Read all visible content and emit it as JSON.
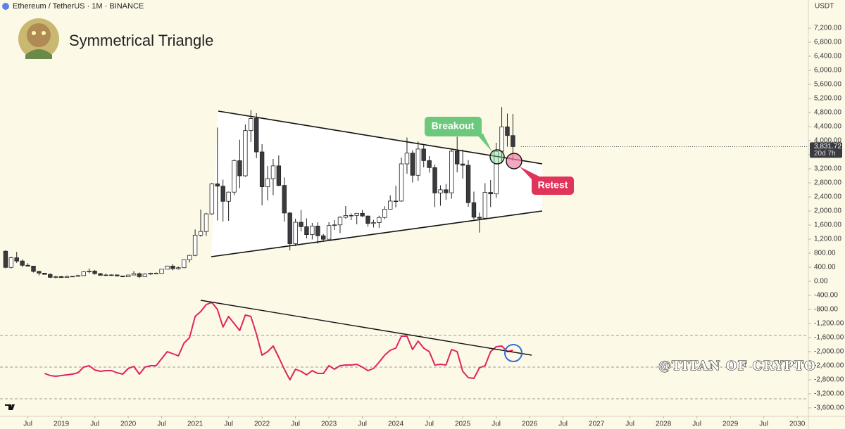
{
  "chart_data": {
    "type": "candlestick",
    "header": "Ethereum / TetherUS · 1M · BINANCE",
    "title": "Symmetrical Triangle",
    "axis_unit": "USDT",
    "annotations": {
      "breakout": "Breakout",
      "retest": "Retest",
      "watermark": "@TITAN OF CRYPTO"
    },
    "last_price": {
      "value": 3831.72,
      "label": "3,831.72"
    },
    "countdown": "20d 7h",
    "up_color": "#ffffff",
    "down_color": "#3a3b40",
    "grid": false,
    "xlim": [
      "2018-02",
      "2030-03"
    ],
    "xticks": [
      {
        "value": "2018-07",
        "label": "Jul"
      },
      {
        "value": "2019-01",
        "label": "2019"
      },
      {
        "value": "2019-07",
        "label": "Jul"
      },
      {
        "value": "2020-01",
        "label": "2020"
      },
      {
        "value": "2020-07",
        "label": "Jul"
      },
      {
        "value": "2021-01",
        "label": "2021"
      },
      {
        "value": "2021-07",
        "label": "Jul"
      },
      {
        "value": "2022-01",
        "label": "2022"
      },
      {
        "value": "2022-07",
        "label": "Jul"
      },
      {
        "value": "2023-01",
        "label": "2023"
      },
      {
        "value": "2023-07",
        "label": "Jul"
      },
      {
        "value": "2024-01",
        "label": "2024"
      },
      {
        "value": "2024-07",
        "label": "Jul"
      },
      {
        "value": "2025-01",
        "label": "2025"
      },
      {
        "value": "2025-07",
        "label": "Jul"
      },
      {
        "value": "2026-01",
        "label": "2026"
      },
      {
        "value": "2026-07",
        "label": "Jul"
      },
      {
        "value": "2027-01",
        "label": "2027"
      },
      {
        "value": "2027-07",
        "label": "Jul"
      },
      {
        "value": "2028-01",
        "label": "2028"
      },
      {
        "value": "2028-07",
        "label": "Jul"
      },
      {
        "value": "2029-01",
        "label": "2029"
      },
      {
        "value": "2029-07",
        "label": "Jul"
      },
      {
        "value": "2030-01",
        "label": "2030"
      }
    ],
    "ylim": [
      -3840,
      8000
    ],
    "yticks": [
      {
        "value": 7200,
        "label": "7,200.00"
      },
      {
        "value": 6800,
        "label": "6,800.00"
      },
      {
        "value": 6400,
        "label": "6,400.00"
      },
      {
        "value": 6000,
        "label": "6,000.00"
      },
      {
        "value": 5600,
        "label": "5,600.00"
      },
      {
        "value": 5200,
        "label": "5,200.00"
      },
      {
        "value": 4800,
        "label": "4,800.00"
      },
      {
        "value": 4400,
        "label": "4,400.00"
      },
      {
        "value": 4000,
        "label": "4,000.00"
      },
      {
        "value": 3600,
        "label": "3,600.00"
      },
      {
        "value": 3200,
        "label": "3,200.00"
      },
      {
        "value": 2800,
        "label": "2,800.00"
      },
      {
        "value": 2400,
        "label": "2,400.00"
      },
      {
        "value": 2000,
        "label": "2,000.00"
      },
      {
        "value": 1600,
        "label": "1,600.00"
      },
      {
        "value": 1200,
        "label": "1,200.00"
      },
      {
        "value": 800,
        "label": "800.00"
      },
      {
        "value": 400,
        "label": "400.00"
      },
      {
        "value": 0,
        "label": "0.00"
      },
      {
        "value": -400,
        "label": "-400.00"
      },
      {
        "value": -800,
        "label": "-800.00"
      },
      {
        "value": -1200,
        "label": "-1,200.00"
      },
      {
        "value": -1600,
        "label": "-1,600.00"
      },
      {
        "value": -2000,
        "label": "-2,000.00"
      },
      {
        "value": -2400,
        "label": "-2,400.00"
      },
      {
        "value": -2800,
        "label": "-2,800.00"
      },
      {
        "value": -3200,
        "label": "-3,200.00"
      },
      {
        "value": -3600,
        "label": "-3,600.00"
      }
    ],
    "x": [
      "2018-03",
      "2018-04",
      "2018-05",
      "2018-06",
      "2018-07",
      "2018-08",
      "2018-09",
      "2018-10",
      "2018-11",
      "2018-12",
      "2019-01",
      "2019-02",
      "2019-03",
      "2019-04",
      "2019-05",
      "2019-06",
      "2019-07",
      "2019-08",
      "2019-09",
      "2019-10",
      "2019-11",
      "2019-12",
      "2020-01",
      "2020-02",
      "2020-03",
      "2020-04",
      "2020-05",
      "2020-06",
      "2020-07",
      "2020-08",
      "2020-09",
      "2020-10",
      "2020-11",
      "2020-12",
      "2021-01",
      "2021-02",
      "2021-03",
      "2021-04",
      "2021-05",
      "2021-06",
      "2021-07",
      "2021-08",
      "2021-09",
      "2021-10",
      "2021-11",
      "2021-12",
      "2022-01",
      "2022-02",
      "2022-03",
      "2022-04",
      "2022-05",
      "2022-06",
      "2022-07",
      "2022-08",
      "2022-09",
      "2022-10",
      "2022-11",
      "2022-12",
      "2023-01",
      "2023-02",
      "2023-03",
      "2023-04",
      "2023-05",
      "2023-06",
      "2023-07",
      "2023-08",
      "2023-09",
      "2023-10",
      "2023-11",
      "2023-12",
      "2024-01",
      "2024-02",
      "2024-03",
      "2024-04",
      "2024-05",
      "2024-06",
      "2024-07",
      "2024-08",
      "2024-09",
      "2024-10",
      "2024-11",
      "2024-12",
      "2025-01",
      "2025-02",
      "2025-03",
      "2025-04",
      "2025-05",
      "2025-06",
      "2025-07",
      "2025-08",
      "2025-09",
      "2025-10"
    ],
    "ohlc": [
      [
        856,
        880,
        370,
        395
      ],
      [
        395,
        700,
        365,
        669
      ],
      [
        669,
        838,
        520,
        577
      ],
      [
        577,
        625,
        410,
        455
      ],
      [
        455,
        515,
        425,
        433
      ],
      [
        433,
        435,
        250,
        282
      ],
      [
        282,
        300,
        167,
        232
      ],
      [
        232,
        236,
        190,
        197
      ],
      [
        197,
        225,
        100,
        113
      ],
      [
        113,
        160,
        82,
        133
      ],
      [
        133,
        160,
        100,
        107
      ],
      [
        107,
        165,
        102,
        136
      ],
      [
        136,
        145,
        130,
        141
      ],
      [
        141,
        185,
        140,
        162
      ],
      [
        162,
        288,
        155,
        268
      ],
      [
        268,
        365,
        230,
        290
      ],
      [
        290,
        320,
        190,
        218
      ],
      [
        218,
        238,
        165,
        171
      ],
      [
        171,
        223,
        155,
        180
      ],
      [
        180,
        199,
        153,
        182
      ],
      [
        182,
        191,
        138,
        152
      ],
      [
        152,
        153,
        117,
        129
      ],
      [
        129,
        184,
        127,
        179
      ],
      [
        179,
        288,
        175,
        218
      ],
      [
        218,
        253,
        90,
        133
      ],
      [
        133,
        228,
        130,
        206
      ],
      [
        206,
        247,
        178,
        231
      ],
      [
        231,
        254,
        215,
        225
      ],
      [
        225,
        348,
        222,
        345
      ],
      [
        345,
        445,
        340,
        434
      ],
      [
        434,
        488,
        310,
        359
      ],
      [
        359,
        420,
        335,
        386
      ],
      [
        386,
        623,
        372,
        615
      ],
      [
        615,
        755,
        533,
        737
      ],
      [
        737,
        1475,
        715,
        1312
      ],
      [
        1312,
        2040,
        1270,
        1417
      ],
      [
        1417,
        1945,
        1290,
        1918
      ],
      [
        1918,
        2797,
        1890,
        2772
      ],
      [
        2772,
        4372,
        1730,
        2706
      ],
      [
        2706,
        2891,
        1700,
        2275
      ],
      [
        2275,
        2550,
        1720,
        2536
      ],
      [
        2536,
        3470,
        2450,
        3430
      ],
      [
        3430,
        4027,
        2650,
        3000
      ],
      [
        3000,
        4460,
        2970,
        4287
      ],
      [
        4287,
        4868,
        3960,
        4630
      ],
      [
        4630,
        4780,
        3500,
        3680
      ],
      [
        3680,
        3900,
        2160,
        2688
      ],
      [
        2688,
        3280,
        2300,
        2920
      ],
      [
        2920,
        3480,
        2450,
        3283
      ],
      [
        3283,
        3580,
        2700,
        2727
      ],
      [
        2727,
        2955,
        1700,
        1942
      ],
      [
        1942,
        1970,
        880,
        1070
      ],
      [
        1070,
        1780,
        1000,
        1680
      ],
      [
        1680,
        2030,
        1420,
        1553
      ],
      [
        1553,
        1790,
        1220,
        1328
      ],
      [
        1328,
        1660,
        1190,
        1572
      ],
      [
        1572,
        1680,
        1070,
        1295
      ],
      [
        1295,
        1350,
        1160,
        1196
      ],
      [
        1196,
        1680,
        1190,
        1586
      ],
      [
        1586,
        1740,
        1460,
        1605
      ],
      [
        1605,
        1850,
        1370,
        1821
      ],
      [
        1821,
        2140,
        1780,
        1869
      ],
      [
        1869,
        1930,
        1740,
        1874
      ],
      [
        1874,
        1940,
        1620,
        1934
      ],
      [
        1934,
        2030,
        1830,
        1857
      ],
      [
        1857,
        1870,
        1550,
        1645
      ],
      [
        1645,
        1750,
        1530,
        1671
      ],
      [
        1671,
        1865,
        1520,
        1815
      ],
      [
        1815,
        2135,
        1770,
        2052
      ],
      [
        2052,
        2445,
        2040,
        2282
      ],
      [
        2282,
        2718,
        2100,
        2283
      ],
      [
        2283,
        3520,
        2260,
        3340
      ],
      [
        3340,
        4090,
        3060,
        3646
      ],
      [
        3646,
        3730,
        2810,
        3015
      ],
      [
        3015,
        3975,
        2860,
        3762
      ],
      [
        3762,
        3890,
        3240,
        3432
      ],
      [
        3432,
        3560,
        3090,
        3233
      ],
      [
        3233,
        3320,
        2110,
        2513
      ],
      [
        2513,
        2730,
        2150,
        2603
      ],
      [
        2603,
        2770,
        2320,
        2518
      ],
      [
        2518,
        3740,
        2350,
        3700
      ],
      [
        3700,
        4110,
        3100,
        3337
      ],
      [
        3337,
        3745,
        2920,
        3300
      ],
      [
        3300,
        3450,
        2120,
        2237
      ],
      [
        2237,
        2550,
        1760,
        1822
      ],
      [
        1822,
        1955,
        1385,
        1794
      ],
      [
        1794,
        2790,
        1750,
        2528
      ],
      [
        2528,
        2880,
        2110,
        2486
      ],
      [
        2486,
        3940,
        2370,
        3698
      ],
      [
        3698,
        4955,
        3350,
        4391
      ],
      [
        4391,
        4770,
        3830,
        4145
      ],
      [
        4145,
        4760,
        3430,
        3831.72
      ]
    ],
    "overlay": {
      "type": "line",
      "color": "#e0245e",
      "values": [
        null,
        null,
        null,
        null,
        null,
        null,
        null,
        -2620,
        -2680,
        -2700,
        -2680,
        -2660,
        -2640,
        -2600,
        -2440,
        -2400,
        -2520,
        -2560,
        -2540,
        -2540,
        -2600,
        -2640,
        -2480,
        -2420,
        -2640,
        -2440,
        -2400,
        -2400,
        -2200,
        -2000,
        -2060,
        -2120,
        -1760,
        -1600,
        -1000,
        -860,
        -660,
        -600,
        -800,
        -1300,
        -1000,
        -1200,
        -1400,
        -960,
        -1000,
        -1500,
        -2100,
        -2000,
        -1840,
        -2160,
        -2500,
        -2800,
        -2500,
        -2560,
        -2660,
        -2540,
        -2620,
        -2620,
        -2400,
        -2500,
        -2400,
        -2380,
        -2380,
        -2360,
        -2440,
        -2540,
        -2480,
        -2300,
        -2100,
        -1960,
        -1900,
        -1560,
        -1560,
        -1940,
        -1700,
        -1900,
        -2000,
        -2380,
        -2360,
        -2380,
        -1940,
        -2000,
        -2560,
        -2740,
        -2760,
        -2460,
        -2400,
        -2000,
        -1860,
        -1840,
        -2000,
        -1960
      ]
    }
  }
}
